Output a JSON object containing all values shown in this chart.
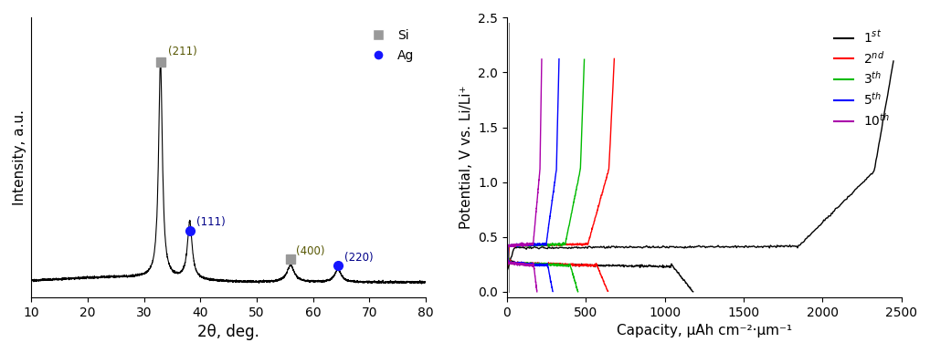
{
  "xrd": {
    "xlim": [
      10,
      80
    ],
    "xlabel": "2θ, deg.",
    "ylabel": "Intensity, a.u.",
    "peaks_si": [
      {
        "x": 32.9,
        "label": "(211)",
        "marker": "s",
        "color": "#999999",
        "y_marker": 0.99
      },
      {
        "x": 56.0,
        "label": "(400)",
        "marker": "s",
        "color": "#999999",
        "y_marker": 0.145
      }
    ],
    "peaks_ag": [
      {
        "x": 38.1,
        "label": "(111)",
        "marker": "o",
        "color": "#1515ff",
        "y_marker": 0.265
      },
      {
        "x": 64.4,
        "label": "(220)",
        "marker": "o",
        "color": "#1515ff",
        "y_marker": 0.115
      }
    ],
    "legend_si_color": "#999999",
    "legend_ag_color": "#1515ff",
    "ann_color_si": "#555500",
    "ann_color_ag": "#000088"
  },
  "echem": {
    "xlim": [
      0,
      2500
    ],
    "ylim": [
      -0.05,
      2.5
    ],
    "xlabel": "Capacity, μAh cm⁻²·μm⁻¹",
    "ylabel": "Potential, V vs. Li/Li⁺",
    "cycles": [
      {
        "legend": "1$^{st}$",
        "color": "#000000",
        "cap_charge": 2450,
        "cap_discharge": 1180,
        "flat_c": 0.4,
        "flat_d": 0.255
      },
      {
        "legend": "2$^{nd}$",
        "color": "#ff0000",
        "cap_charge": 680,
        "cap_discharge": 640,
        "flat_c": 0.42,
        "flat_d": 0.265
      },
      {
        "legend": "3$^{th}$",
        "color": "#00bb00",
        "cap_charge": 490,
        "cap_discharge": 450,
        "flat_c": 0.42,
        "flat_d": 0.265
      },
      {
        "legend": "5$^{th}$",
        "color": "#0000ff",
        "cap_charge": 330,
        "cap_discharge": 290,
        "flat_c": 0.42,
        "flat_d": 0.265
      },
      {
        "legend": "10$^{th}$",
        "color": "#aa00aa",
        "cap_charge": 220,
        "cap_discharge": 190,
        "flat_c": 0.42,
        "flat_d": 0.265
      }
    ]
  }
}
